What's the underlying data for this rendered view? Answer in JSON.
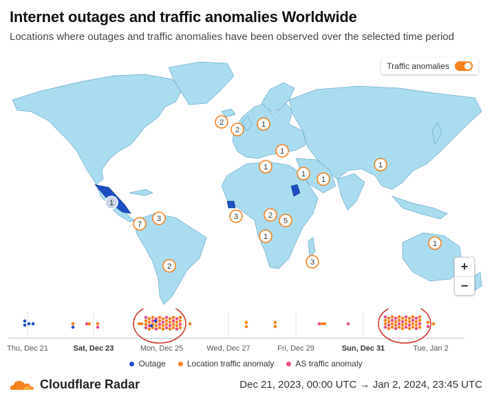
{
  "title": "Internet outages and traffic anomalies Worldwide",
  "subtitle": "Locations where outages and traffic anomalies have been observed over the selected time period",
  "toggle": {
    "label": "Traffic anomalies",
    "on": true
  },
  "zoom": {
    "in": "+",
    "out": "−"
  },
  "colors": {
    "land": "#aadcf0",
    "outage": "#1c4fc4",
    "location_anomaly": "#f6821f",
    "as_anomaly": "#ea4c89",
    "marker_border": "#f6821f"
  },
  "markers": [
    {
      "count": "1",
      "type": "outage"
    },
    {
      "count": "2",
      "type": "anomaly"
    },
    {
      "count": "2",
      "type": "anomaly"
    },
    {
      "count": "1",
      "type": "anomaly"
    },
    {
      "count": "1",
      "type": "anomaly"
    },
    {
      "count": "1",
      "type": "anomaly"
    },
    {
      "count": "1",
      "type": "anomaly"
    },
    {
      "count": "1",
      "type": "anomaly"
    },
    {
      "count": "1",
      "type": "anomaly"
    },
    {
      "count": "3",
      "type": "anomaly"
    },
    {
      "count": "2",
      "type": "anomaly"
    },
    {
      "count": "5",
      "type": "anomaly"
    },
    {
      "count": "1",
      "type": "anomaly"
    },
    {
      "count": "3",
      "type": "anomaly"
    },
    {
      "count": "7",
      "type": "anomaly"
    },
    {
      "count": "3",
      "type": "anomaly"
    },
    {
      "count": "2",
      "type": "anomaly"
    },
    {
      "count": "1",
      "type": "anomaly"
    }
  ],
  "timeline": {
    "ticks": [
      {
        "label": "Thu, Dec 21",
        "bold": false
      },
      {
        "label": "Sat, Dec 23",
        "bold": true
      },
      {
        "label": "Mon, Dec 25",
        "bold": false
      },
      {
        "label": "Wed, Dec 27",
        "bold": false
      },
      {
        "label": "Fri, Dec 29",
        "bold": false
      },
      {
        "label": "Sun, Dec 31",
        "bold": true
      },
      {
        "label": "Tue, Jan 2",
        "bold": false
      }
    ]
  },
  "legend": [
    {
      "label": "Outage",
      "color": "#1c4fc4"
    },
    {
      "label": "Location traffic anomaly",
      "color": "#f6821f"
    },
    {
      "label": "AS traffic anomaly",
      "color": "#ea4c89"
    }
  ],
  "footer": {
    "brand": "Cloudflare Radar",
    "range": "Dec 21, 2023, 00:00 UTC → Jan 2, 2024, 23:45 UTC"
  }
}
